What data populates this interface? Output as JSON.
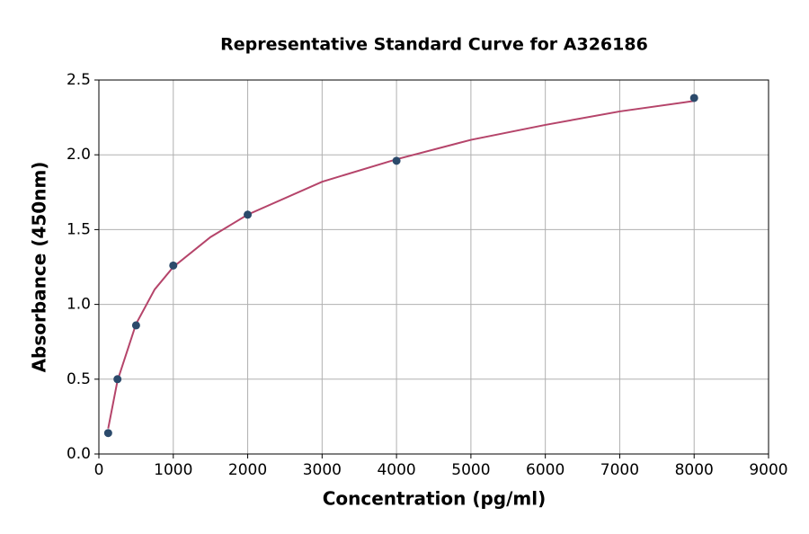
{
  "chart_data": {
    "type": "scatter",
    "title": "Representative Standard Curve for A326186",
    "x_label": "Concentration (pg/ml)",
    "y_label": "Absorbance (450nm)",
    "xlim": [
      0,
      9000
    ],
    "xticks": [
      0,
      1000,
      2000,
      3000,
      4000,
      5000,
      6000,
      7000,
      8000,
      9000
    ],
    "ylim": [
      0,
      2.5
    ],
    "yticks": [
      {
        "value": 0,
        "label": "0.0"
      },
      0.5,
      {
        "value": 1,
        "label": "1.0"
      },
      1.5,
      {
        "value": 2,
        "label": "2.0"
      },
      2.5
    ],
    "grid": true,
    "series": [
      {
        "type": "line",
        "color": "#b5446a",
        "x": [
          125,
          250,
          500,
          750,
          1000,
          1500,
          2000,
          3000,
          4000,
          5000,
          6000,
          7000,
          8000
        ],
        "values": [
          0.17,
          0.49,
          0.87,
          1.1,
          1.25,
          1.45,
          1.6,
          1.82,
          1.97,
          2.1,
          2.2,
          2.29,
          2.36
        ]
      },
      {
        "type": "scatter",
        "color": "#2b4a6b",
        "x": [
          125,
          250,
          500,
          1000,
          2000,
          4000,
          8000
        ],
        "values": [
          0.14,
          0.5,
          0.86,
          1.26,
          1.6,
          1.96,
          2.38
        ]
      }
    ]
  }
}
